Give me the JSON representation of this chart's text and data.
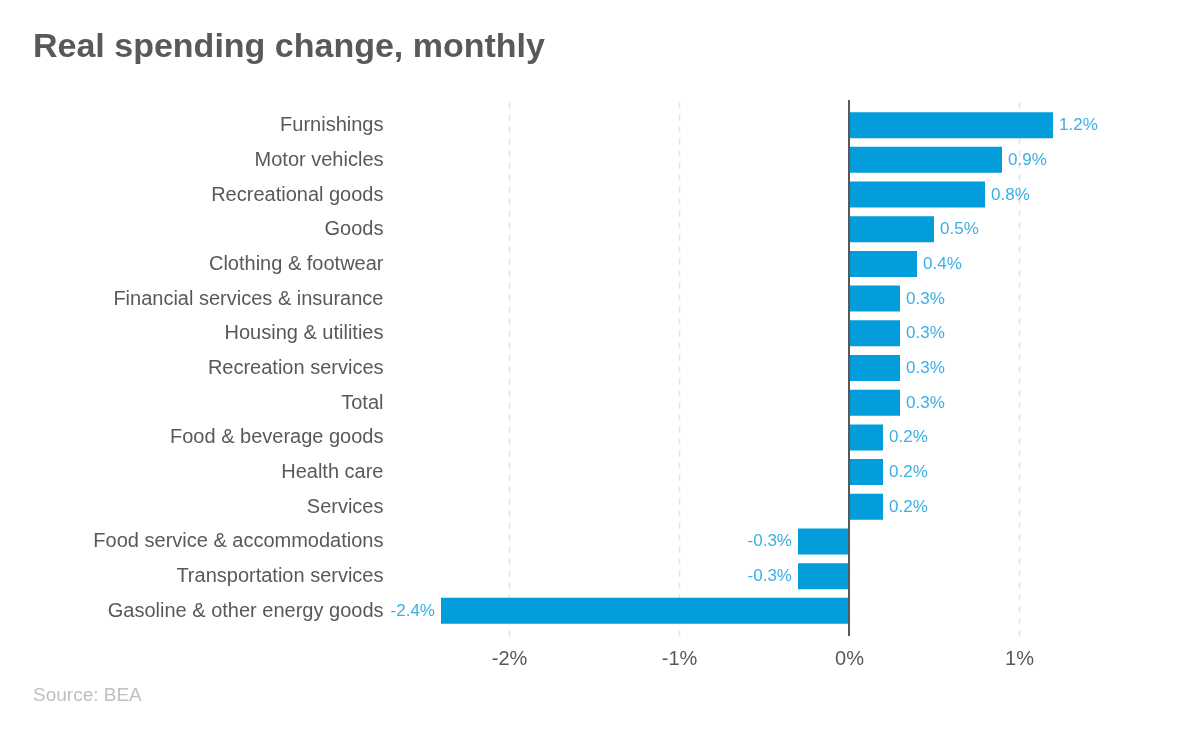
{
  "chart_data": {
    "type": "bar",
    "orientation": "horizontal",
    "title": "Real spending change, monthly",
    "categories": [
      "Furnishings",
      "Motor vehicles",
      "Recreational goods",
      "Goods",
      "Clothing & footwear",
      "Financial services & insurance",
      "Housing & utilities",
      "Recreation services",
      "Total",
      "Food & beverage goods",
      "Health care",
      "Services",
      "Food service & accommodations",
      "Transportation services",
      "Gasoline & other energy goods"
    ],
    "values": [
      1.2,
      0.9,
      0.8,
      0.5,
      0.4,
      0.3,
      0.3,
      0.3,
      0.3,
      0.2,
      0.2,
      0.2,
      -0.3,
      -0.3,
      -2.4
    ],
    "color": "#039ddb",
    "value_labels": [
      "1.2%",
      "0.9%",
      "0.8%",
      "0.5%",
      "0.4%",
      "0.3%",
      "0.3%",
      "0.3%",
      "0.3%",
      "0.2%",
      "0.2%",
      "0.2%",
      "-0.3%",
      "-0.3%",
      "-2.4%"
    ],
    "xlim": [
      -2.4,
      1.2
    ],
    "xticks": [
      {
        "value": -2,
        "label": "-2%"
      },
      {
        "value": -1,
        "label": "-1%"
      },
      {
        "value": 0,
        "label": "0%"
      },
      {
        "value": 1,
        "label": "1%"
      }
    ],
    "grid": "x",
    "ref_lines": [
      {
        "axis": "x",
        "value": 0,
        "color": "#595959"
      }
    ],
    "annotations": [
      "Source: BEA"
    ]
  }
}
